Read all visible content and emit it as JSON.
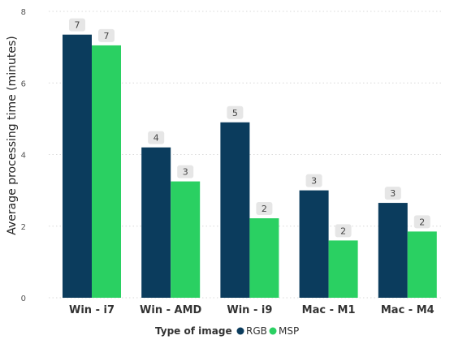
{
  "chart_data": {
    "type": "bar",
    "title": "",
    "xlabel": "",
    "ylabel": "Average processing time (minutes)",
    "ylim": [
      0,
      8
    ],
    "yticks": [
      0,
      2,
      4,
      6,
      8
    ],
    "grid": true,
    "categories": [
      "Win - i7",
      "Win - AMD",
      "Win - i9",
      "Mac - M1",
      "Mac - M4"
    ],
    "series": [
      {
        "name": "RGB",
        "color": "#0b3c5d",
        "values": [
          7.35,
          4.2,
          4.9,
          3.0,
          2.65
        ],
        "data_labels": [
          "7",
          "4",
          "5",
          "3",
          "3"
        ]
      },
      {
        "name": "MSP",
        "color": "#2ad062",
        "values": [
          7.05,
          3.25,
          2.22,
          1.6,
          1.85
        ],
        "data_labels": [
          "7",
          "3",
          "2",
          "2",
          "2"
        ]
      }
    ],
    "legend": {
      "title": "Type of image",
      "position": "bottom-center"
    }
  }
}
